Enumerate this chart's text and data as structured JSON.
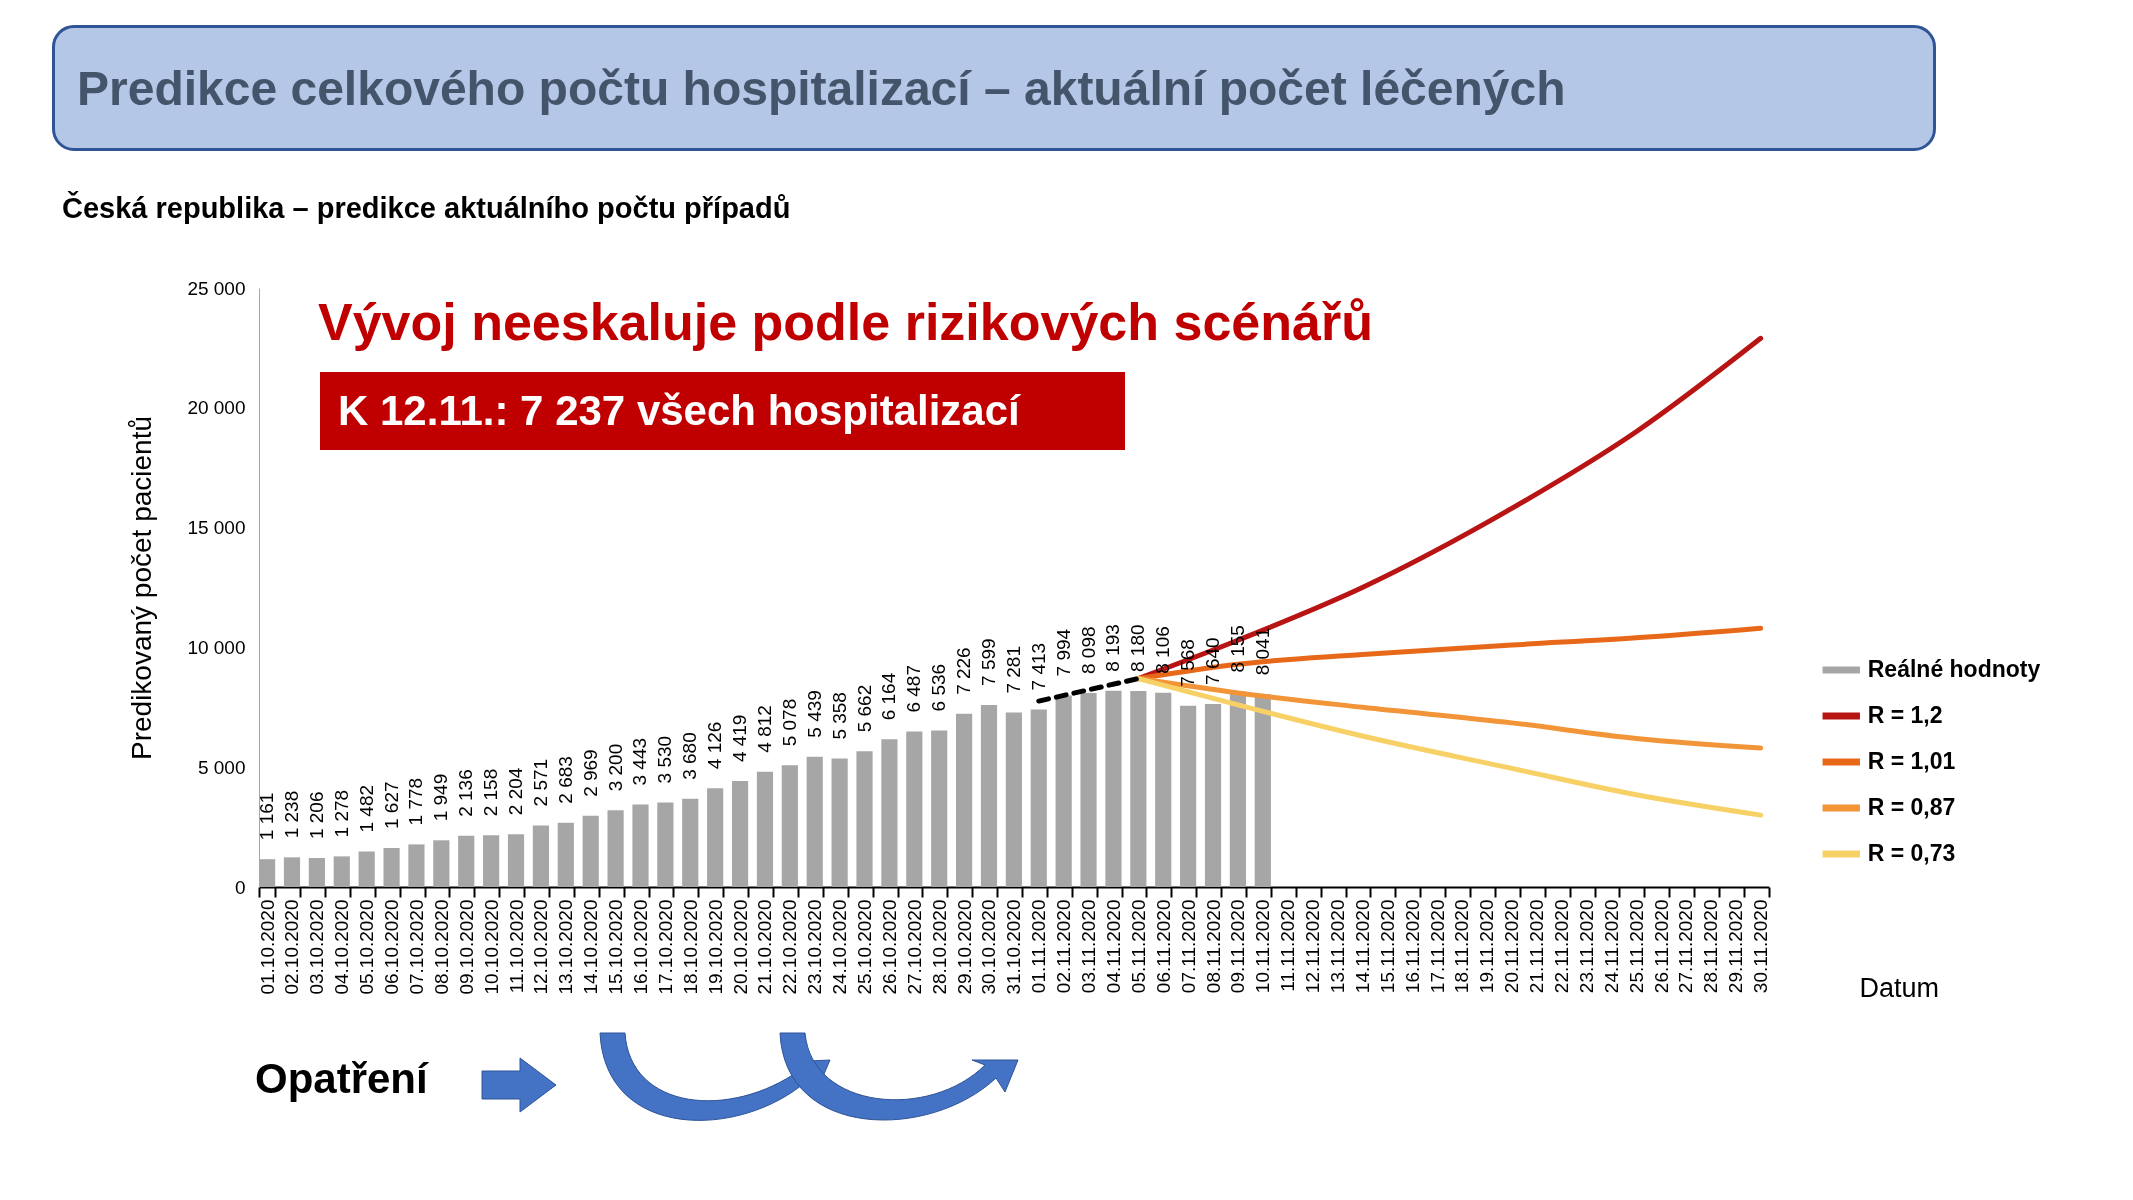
{
  "chart_data": {
    "type": "bar",
    "title": "Predikce celkového počtu hospitalizací – aktuální počet léčených",
    "subtitle": "Česká republika – predikce aktuálního počtu případů",
    "xlabel": "Datum",
    "ylabel": "Predikovaný počet pacientů",
    "annotations": [
      "Vývoj neeskaluje podle rizikových scénářů",
      "K 12.11.: 7 237 všech hospitalizací",
      "Opatření"
    ],
    "categories": [
      "01.10.2020",
      "02.10.2020",
      "03.10.2020",
      "04.10.2020",
      "05.10.2020",
      "06.10.2020",
      "07.10.2020",
      "08.10.2020",
      "09.10.2020",
      "10.10.2020",
      "11.10.2020",
      "12.10.2020",
      "13.10.2020",
      "14.10.2020",
      "15.10.2020",
      "16.10.2020",
      "17.10.2020",
      "18.10.2020",
      "19.10.2020",
      "20.10.2020",
      "21.10.2020",
      "22.10.2020",
      "23.10.2020",
      "24.10.2020",
      "25.10.2020",
      "26.10.2020",
      "27.10.2020",
      "28.10.2020",
      "29.10.2020",
      "30.10.2020",
      "31.10.2020",
      "01.11.2020",
      "02.11.2020",
      "03.11.2020",
      "04.11.2020",
      "05.11.2020",
      "06.11.2020",
      "07.11.2020",
      "08.11.2020",
      "09.11.2020",
      "10.11.2020",
      "11.11.2020",
      "12.11.2020",
      "13.11.2020",
      "14.11.2020",
      "15.11.2020",
      "16.11.2020",
      "17.11.2020",
      "18.11.2020",
      "19.11.2020",
      "20.11.2020",
      "21.11.2020",
      "22.11.2020",
      "23.11.2020",
      "24.11.2020",
      "25.11.2020",
      "26.11.2020",
      "27.11.2020",
      "28.11.2020",
      "29.11.2020",
      "30.11.2020"
    ],
    "series": [
      {
        "name": "Reálné hodnoty",
        "color": "#a6a6a6",
        "values": [
          1161,
          1238,
          1206,
          1278,
          1482,
          1627,
          1778,
          1949,
          2136,
          2158,
          2204,
          2571,
          2683,
          2969,
          3200,
          3443,
          3530,
          3680,
          4126,
          4419,
          4812,
          5078,
          5439,
          5358,
          5662,
          6164,
          6487,
          6536,
          7226,
          7599,
          7281,
          7413,
          7994,
          8098,
          8193,
          8180,
          8106,
          7568,
          7640,
          8155,
          8041,
          null,
          null,
          null,
          null,
          null,
          null,
          null,
          null,
          null,
          null,
          null,
          null,
          null,
          null,
          null,
          null,
          null,
          null,
          null,
          null
        ],
        "value_labels": [
          "1 161",
          "1 238",
          "1 206",
          "1 278",
          "1 482",
          "1 627",
          "1 778",
          "1 949",
          "2 136",
          "2 158",
          "2 204",
          "2 571",
          "2 683",
          "2 969",
          "3 200",
          "3 443",
          "3 530",
          "3 680",
          "4 126",
          "4 419",
          "4 812",
          "5 078",
          "5 439",
          "5 358",
          "5 662",
          "6 164",
          "6 487",
          "6 536",
          "7 226",
          "7 599",
          "7 281",
          "7 413",
          "7 994",
          "8 098",
          "8 193",
          "8 180",
          "8 106",
          "7 568",
          "7 640",
          "8 155",
          "8 041",
          null,
          null,
          null,
          null,
          null,
          null,
          null,
          null,
          null,
          null,
          null,
          null,
          null,
          null,
          null,
          null,
          null,
          null,
          null,
          null
        ]
      },
      {
        "name": "R = 1,2",
        "type": "line",
        "color": "#b81414",
        "values": [
          null,
          null,
          null,
          null,
          null,
          null,
          null,
          null,
          null,
          null,
          null,
          null,
          null,
          null,
          null,
          null,
          null,
          null,
          null,
          null,
          null,
          null,
          null,
          null,
          null,
          null,
          null,
          null,
          null,
          null,
          null,
          null,
          null,
          null,
          null,
          8700,
          null,
          null,
          null,
          10300,
          null,
          null,
          null,
          null,
          12500,
          null,
          null,
          null,
          null,
          null,
          15800,
          null,
          null,
          null,
          null,
          19000,
          null,
          null,
          null,
          null,
          22900
        ]
      },
      {
        "name": "R = 1,01",
        "type": "line",
        "color": "#e8681a",
        "values": [
          null,
          null,
          null,
          null,
          null,
          null,
          null,
          null,
          null,
          null,
          null,
          null,
          null,
          null,
          null,
          null,
          null,
          null,
          null,
          null,
          null,
          null,
          null,
          null,
          null,
          null,
          null,
          null,
          null,
          null,
          null,
          null,
          null,
          null,
          null,
          8700,
          null,
          null,
          null,
          9300,
          null,
          null,
          null,
          null,
          9700,
          null,
          null,
          null,
          null,
          null,
          10100,
          null,
          null,
          null,
          null,
          10400,
          null,
          null,
          null,
          null,
          10800
        ]
      },
      {
        "name": "R = 0,87",
        "type": "line",
        "color": "#f29538",
        "values": [
          null,
          null,
          null,
          null,
          null,
          null,
          null,
          null,
          null,
          null,
          null,
          null,
          null,
          null,
          null,
          null,
          null,
          null,
          null,
          null,
          null,
          null,
          null,
          null,
          null,
          null,
          null,
          null,
          null,
          null,
          null,
          null,
          null,
          null,
          null,
          8700,
          null,
          null,
          null,
          8100,
          null,
          null,
          null,
          null,
          7500,
          null,
          null,
          null,
          null,
          null,
          6850,
          null,
          null,
          null,
          null,
          6200,
          null,
          null,
          null,
          null,
          5800
        ]
      },
      {
        "name": "R = 0,73",
        "type": "line",
        "color": "#f7d066",
        "values": [
          null,
          null,
          null,
          null,
          null,
          null,
          null,
          null,
          null,
          null,
          null,
          null,
          null,
          null,
          null,
          null,
          null,
          null,
          null,
          null,
          null,
          null,
          null,
          null,
          null,
          null,
          null,
          null,
          null,
          null,
          null,
          null,
          null,
          null,
          null,
          8700,
          null,
          null,
          null,
          7600,
          null,
          null,
          null,
          null,
          6300,
          null,
          null,
          null,
          null,
          null,
          4950,
          null,
          null,
          null,
          null,
          3850,
          null,
          null,
          null,
          null,
          3000
        ]
      },
      {
        "type": "line",
        "color": "#000000",
        "line_style": "dashed",
        "values": [
          null,
          null,
          null,
          null,
          null,
          null,
          null,
          null,
          null,
          null,
          null,
          null,
          null,
          null,
          null,
          null,
          null,
          null,
          null,
          null,
          null,
          null,
          null,
          null,
          null,
          null,
          null,
          null,
          null,
          null,
          null,
          7760,
          null,
          null,
          null,
          8700,
          null,
          null,
          null,
          null,
          null,
          null,
          null,
          null,
          null,
          null,
          null,
          null,
          null,
          null,
          null,
          null,
          null,
          null,
          null,
          null,
          null,
          null,
          null,
          null,
          null
        ]
      }
    ],
    "ylim": [
      0,
      25000
    ],
    "yticks": [
      0,
      5000,
      10000,
      15000,
      20000,
      25000
    ],
    "grid": false,
    "legend": "right"
  }
}
